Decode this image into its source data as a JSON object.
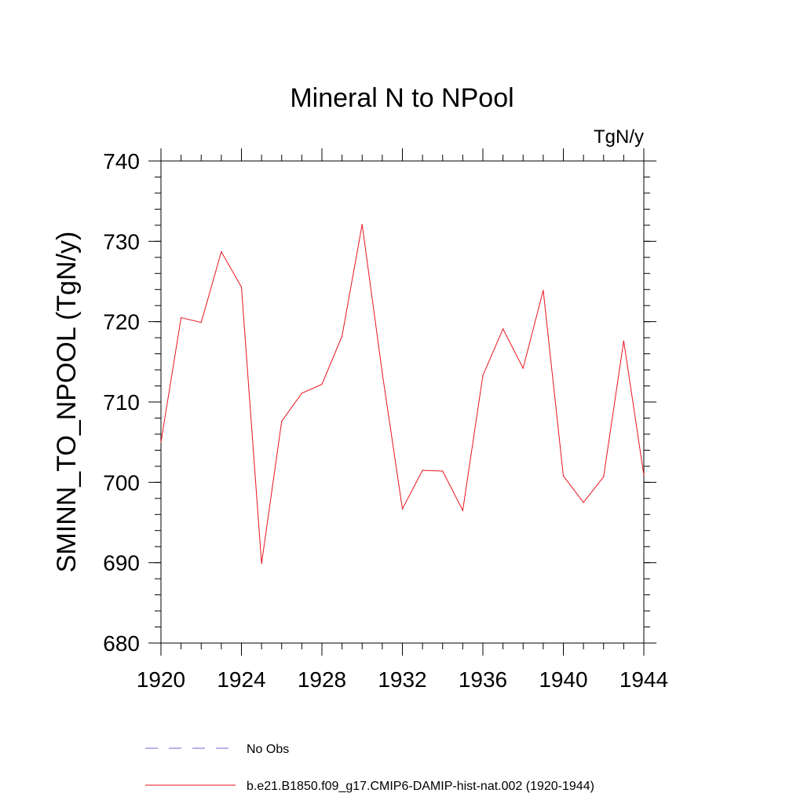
{
  "chart_data": {
    "type": "line",
    "title": "Mineral N to NPool",
    "units_label": "TgN/y",
    "xlabel": "",
    "ylabel": "SMINN_TO_NPOOL  (TgN/y)",
    "xlim": [
      1920,
      1944
    ],
    "ylim": [
      680,
      740
    ],
    "x_ticks": [
      1920,
      1924,
      1928,
      1932,
      1936,
      1940,
      1944
    ],
    "y_ticks": [
      680,
      690,
      700,
      710,
      720,
      730,
      740
    ],
    "grid": false,
    "legend_placement": "bottom",
    "series": [
      {
        "name": "b.e21.B1850.f09_g17.CMIP6-DAMIP-hist-nat.002 (1920-1944)",
        "color": "#e8141c",
        "style": "solid",
        "x": [
          1920,
          1921,
          1922,
          1923,
          1924,
          1925,
          1926,
          1927,
          1928,
          1929,
          1930,
          1931,
          1932,
          1933,
          1934,
          1935,
          1936,
          1937,
          1938,
          1939,
          1940,
          1941,
          1942,
          1943,
          1944
        ],
        "y": [
          705.0,
          720.5,
          719.9,
          728.7,
          724.3,
          689.9,
          707.6,
          711.1,
          712.2,
          718.2,
          732.1,
          713.6,
          696.7,
          701.5,
          701.4,
          696.5,
          713.3,
          719.1,
          714.2,
          723.9,
          700.8,
          697.5,
          700.7,
          717.6,
          700.9
        ]
      }
    ],
    "legend": [
      {
        "label": "No Obs",
        "color": "#6b6bd6",
        "style": "dashed"
      },
      {
        "label": "b.e21.B1850.f09_g17.CMIP6-DAMIP-hist-nat.002 (1920-1944)",
        "color": "#e8141c",
        "style": "solid"
      }
    ]
  }
}
